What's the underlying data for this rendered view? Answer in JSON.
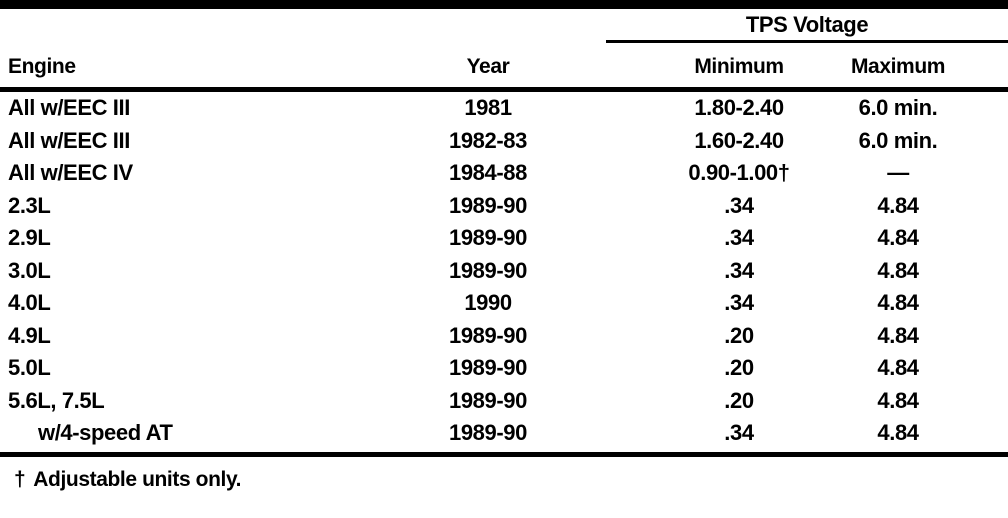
{
  "table": {
    "group_header": "TPS Voltage",
    "columns": {
      "engine": "Engine",
      "year": "Year",
      "minimum": "Minimum",
      "maximum": "Maximum"
    },
    "rows": [
      {
        "engine": "All w/EEC III",
        "year": "1981",
        "minimum": "1.80-2.40",
        "maximum": "6.0 min."
      },
      {
        "engine": "All w/EEC III",
        "year": "1982-83",
        "minimum": "1.60-2.40",
        "maximum": "6.0 min."
      },
      {
        "engine": "All w/EEC IV",
        "year": "1984-88",
        "minimum": "0.90-1.00†",
        "maximum": "—"
      },
      {
        "engine": "2.3L",
        "year": "1989-90",
        "minimum": ".34",
        "maximum": "4.84"
      },
      {
        "engine": "2.9L",
        "year": "1989-90",
        "minimum": ".34",
        "maximum": "4.84"
      },
      {
        "engine": "3.0L",
        "year": "1989-90",
        "minimum": ".34",
        "maximum": "4.84"
      },
      {
        "engine": "4.0L",
        "year": "1990",
        "minimum": ".34",
        "maximum": "4.84"
      },
      {
        "engine": "4.9L",
        "year": "1989-90",
        "minimum": ".20",
        "maximum": "4.84"
      },
      {
        "engine": "5.0L",
        "year": "1989-90",
        "minimum": ".20",
        "maximum": "4.84"
      },
      {
        "engine": "5.6L, 7.5L",
        "year": "1989-90",
        "minimum": ".20",
        "maximum": "4.84"
      },
      {
        "engine": "w/4-speed AT",
        "year": "1989-90",
        "minimum": ".34",
        "maximum": "4.84"
      }
    ],
    "footnote": {
      "symbol": "†",
      "text": "Adjustable units only."
    }
  },
  "colors": {
    "ink": "#000000",
    "paper": "#ffffff"
  }
}
